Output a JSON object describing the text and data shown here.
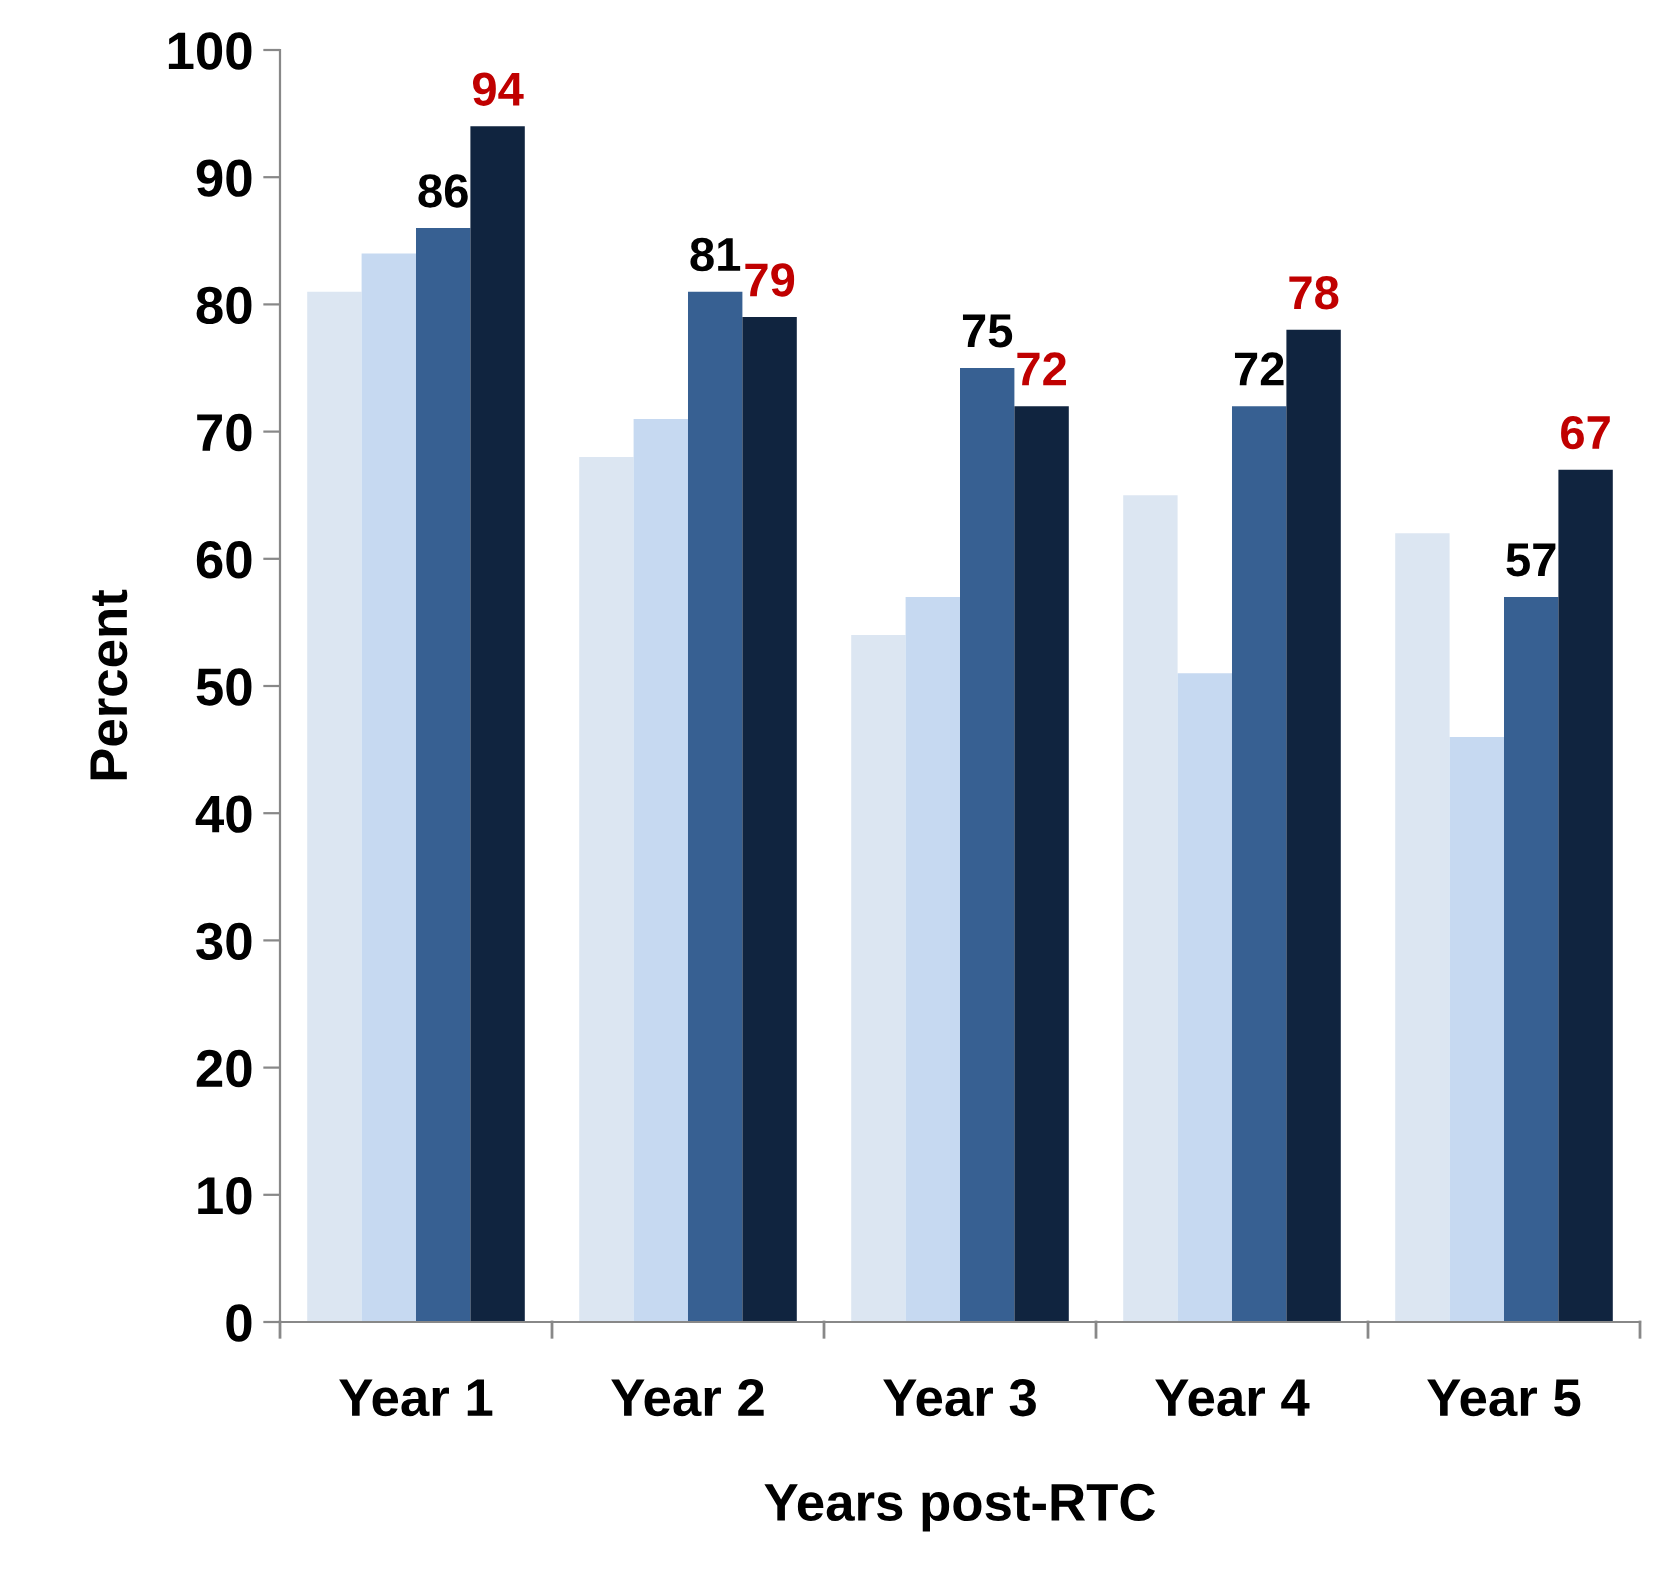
{
  "chart_data": {
    "type": "bar",
    "xlabel": "Years post-RTC",
    "ylabel": "Percent",
    "categories": [
      "Year 1",
      "Year 2",
      "Year 3",
      "Year 4",
      "Year 5"
    ],
    "series": [
      {
        "color": "#dce6f2",
        "values": [
          81,
          68,
          54,
          65,
          62
        ]
      },
      {
        "color": "#c6d9f1",
        "values": [
          84,
          71,
          57,
          51,
          46
        ]
      },
      {
        "color": "#376092",
        "values": [
          86,
          81,
          75,
          72,
          57
        ],
        "value_labels": [
          "86",
          "81",
          "75",
          "72",
          "57"
        ]
      },
      {
        "color": "#10243f",
        "values": [
          94,
          79,
          72,
          78,
          67
        ],
        "value_labels": [
          "94",
          "79",
          "72",
          "78",
          "67"
        ]
      }
    ],
    "ylim": [
      0,
      100
    ],
    "yticks": [
      0,
      10,
      20,
      30,
      40,
      50,
      60,
      70,
      80,
      90,
      100
    ],
    "grid": false,
    "legend": false
  }
}
